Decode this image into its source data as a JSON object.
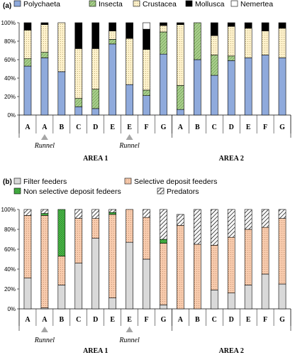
{
  "chart_data": [
    {
      "type": "bar",
      "stacked": true,
      "panel_label": "(a)",
      "categories": [
        "A",
        "A",
        "B",
        "C",
        "D",
        "E",
        "E",
        "F",
        "G",
        "A",
        "B",
        "C",
        "D",
        "E",
        "F",
        "G"
      ],
      "ylim": [
        0,
        100
      ],
      "yticks": [
        "0%",
        "20%",
        "40%",
        "60%",
        "80%",
        "100%"
      ],
      "legend_position": "top",
      "series": [
        {
          "name": "Polychaeta",
          "color": "#8faadc",
          "pattern": "solid",
          "values": [
            53,
            62,
            47,
            9,
            7,
            77,
            33,
            21,
            66,
            6,
            60,
            43,
            59,
            62,
            65,
            62
          ]
        },
        {
          "name": "Insecta",
          "color": "#a9d08e",
          "pattern": "hatch",
          "values": [
            8,
            6,
            0,
            9,
            21,
            5,
            0,
            6,
            24,
            26,
            40,
            22,
            5,
            0,
            0,
            0
          ]
        },
        {
          "name": "Crustacea",
          "color": "#fff2cc",
          "pattern": "dots",
          "values": [
            31,
            30,
            53,
            54,
            44,
            9,
            50,
            44,
            7,
            66,
            0,
            21,
            32,
            32,
            26,
            32
          ]
        },
        {
          "name": "Mollusca",
          "color": "#000000",
          "pattern": "solid",
          "values": [
            8,
            2,
            0,
            28,
            28,
            9,
            17,
            22,
            3,
            2,
            0,
            14,
            4,
            6,
            9,
            6
          ]
        },
        {
          "name": "Nemertea",
          "color": "#ffffff",
          "pattern": "solid",
          "values": [
            0,
            0,
            0,
            0,
            0,
            0,
            0,
            7,
            0,
            0,
            0,
            0,
            0,
            0,
            0,
            0
          ]
        }
      ],
      "runnel_markers": [
        {
          "index": 1,
          "label": "Runnel"
        },
        {
          "index": 6,
          "label": "Runnel"
        }
      ],
      "groups": [
        {
          "label": "AREA 1",
          "from": 0,
          "to": 8
        },
        {
          "label": "AREA 2",
          "from": 9,
          "to": 15
        }
      ]
    },
    {
      "type": "bar",
      "stacked": true,
      "panel_label": "(b)",
      "categories": [
        "A",
        "A",
        "B",
        "C",
        "D",
        "E",
        "E",
        "F",
        "G",
        "A",
        "B",
        "C",
        "D",
        "E",
        "F",
        "G"
      ],
      "ylim": [
        0,
        100
      ],
      "yticks": [
        "0%",
        "20%",
        "40%",
        "60%",
        "80%",
        "100%"
      ],
      "legend_position": "top",
      "series": [
        {
          "name": "Filter feeders",
          "color": "#d9d9d9",
          "pattern": "solid",
          "values": [
            31,
            1,
            24,
            46,
            71,
            11,
            67,
            50,
            4,
            0,
            0,
            19,
            16,
            24,
            35,
            25
          ]
        },
        {
          "name": "Selective deposit feeders",
          "color": "#f8cbad",
          "pattern": "dots",
          "values": [
            63,
            93,
            29,
            45,
            20,
            84,
            33,
            42,
            62,
            84,
            65,
            45,
            56,
            56,
            47,
            66
          ]
        },
        {
          "name": "Non selective deposit fedeers",
          "color": "#70ad47",
          "pattern": "grid",
          "values": [
            0,
            2,
            47,
            0,
            0,
            2,
            0,
            0,
            4,
            0,
            0,
            0,
            0,
            0,
            0,
            0
          ]
        },
        {
          "name": "Predators",
          "color": "#ffffff",
          "pattern": "diag",
          "values": [
            6,
            4,
            0,
            9,
            9,
            3,
            0,
            8,
            30,
            11,
            35,
            36,
            28,
            20,
            18,
            9
          ]
        }
      ],
      "runnel_markers": [
        {
          "index": 1,
          "label": "Runnel"
        },
        {
          "index": 6,
          "label": "Runnel"
        }
      ],
      "groups": [
        {
          "label": "AREA 1",
          "from": 0,
          "to": 8
        },
        {
          "label": "AREA 2",
          "from": 9,
          "to": 15
        }
      ]
    }
  ]
}
